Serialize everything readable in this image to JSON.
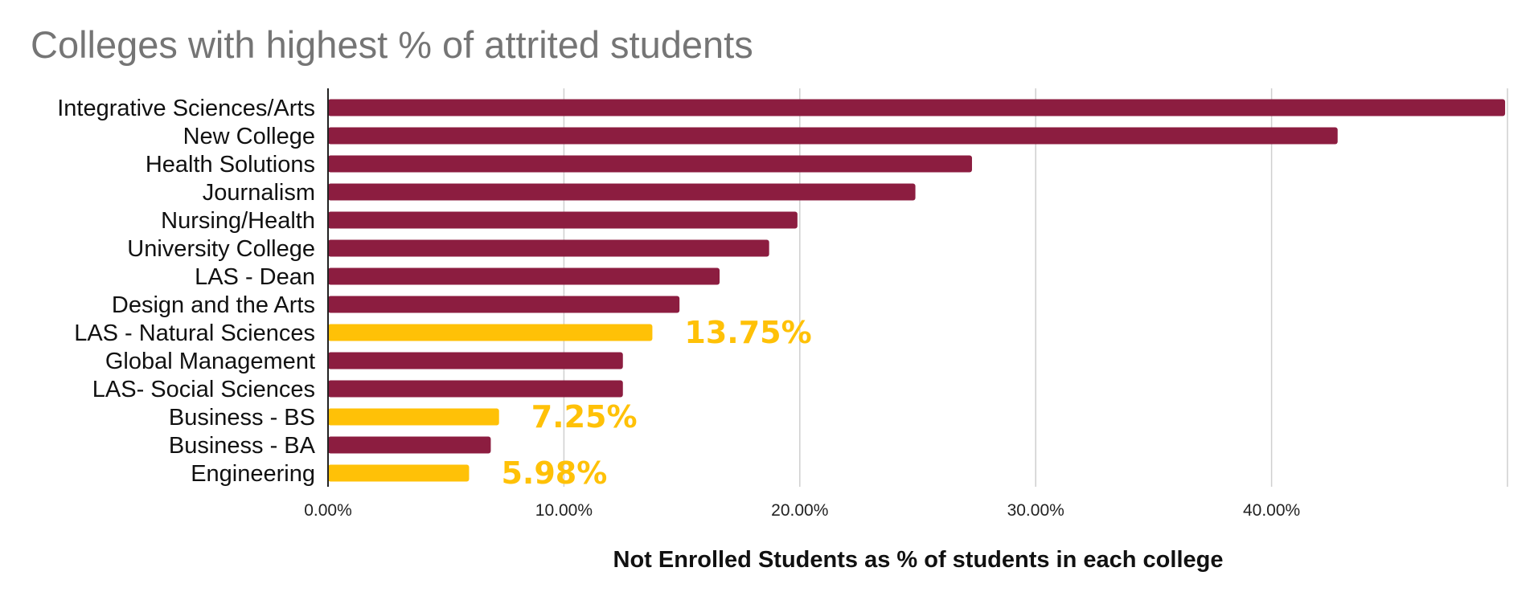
{
  "chart_data": {
    "type": "bar",
    "orientation": "horizontal",
    "title": "Colleges with highest % of attrited students",
    "xlabel": "Not Enrolled Students as % of students in each college",
    "ylabel": "",
    "categories": [
      "Integrative Sciences/Arts",
      "New College",
      "Health Solutions",
      "Journalism",
      "Nursing/Health",
      "University College",
      "LAS - Dean",
      "Design and the Arts",
      "LAS - Natural Sciences",
      "Global Management",
      "LAS- Social Sciences",
      "Business - BS",
      "Business - BA",
      "Engineering"
    ],
    "values": [
      49.9,
      42.8,
      27.3,
      24.9,
      19.9,
      18.7,
      16.6,
      14.9,
      13.75,
      12.5,
      12.5,
      7.25,
      6.9,
      5.98
    ],
    "highlighted": [
      false,
      false,
      false,
      false,
      false,
      false,
      false,
      false,
      true,
      false,
      false,
      true,
      false,
      true
    ],
    "data_labels": [
      "",
      "",
      "",
      "",
      "",
      "",
      "",
      "",
      "13.75%",
      "",
      "",
      "7.25%",
      "",
      "5.98%"
    ],
    "xlim": [
      0,
      50
    ],
    "xticks": [
      0,
      10,
      20,
      30,
      40
    ],
    "xtick_labels": [
      "0.00%",
      "10.00%",
      "20.00%",
      "30.00%",
      "40.00%"
    ],
    "grid": true,
    "colors": {
      "default": "#8c1d40",
      "highlight": "#ffc107",
      "title": "#757575"
    }
  }
}
